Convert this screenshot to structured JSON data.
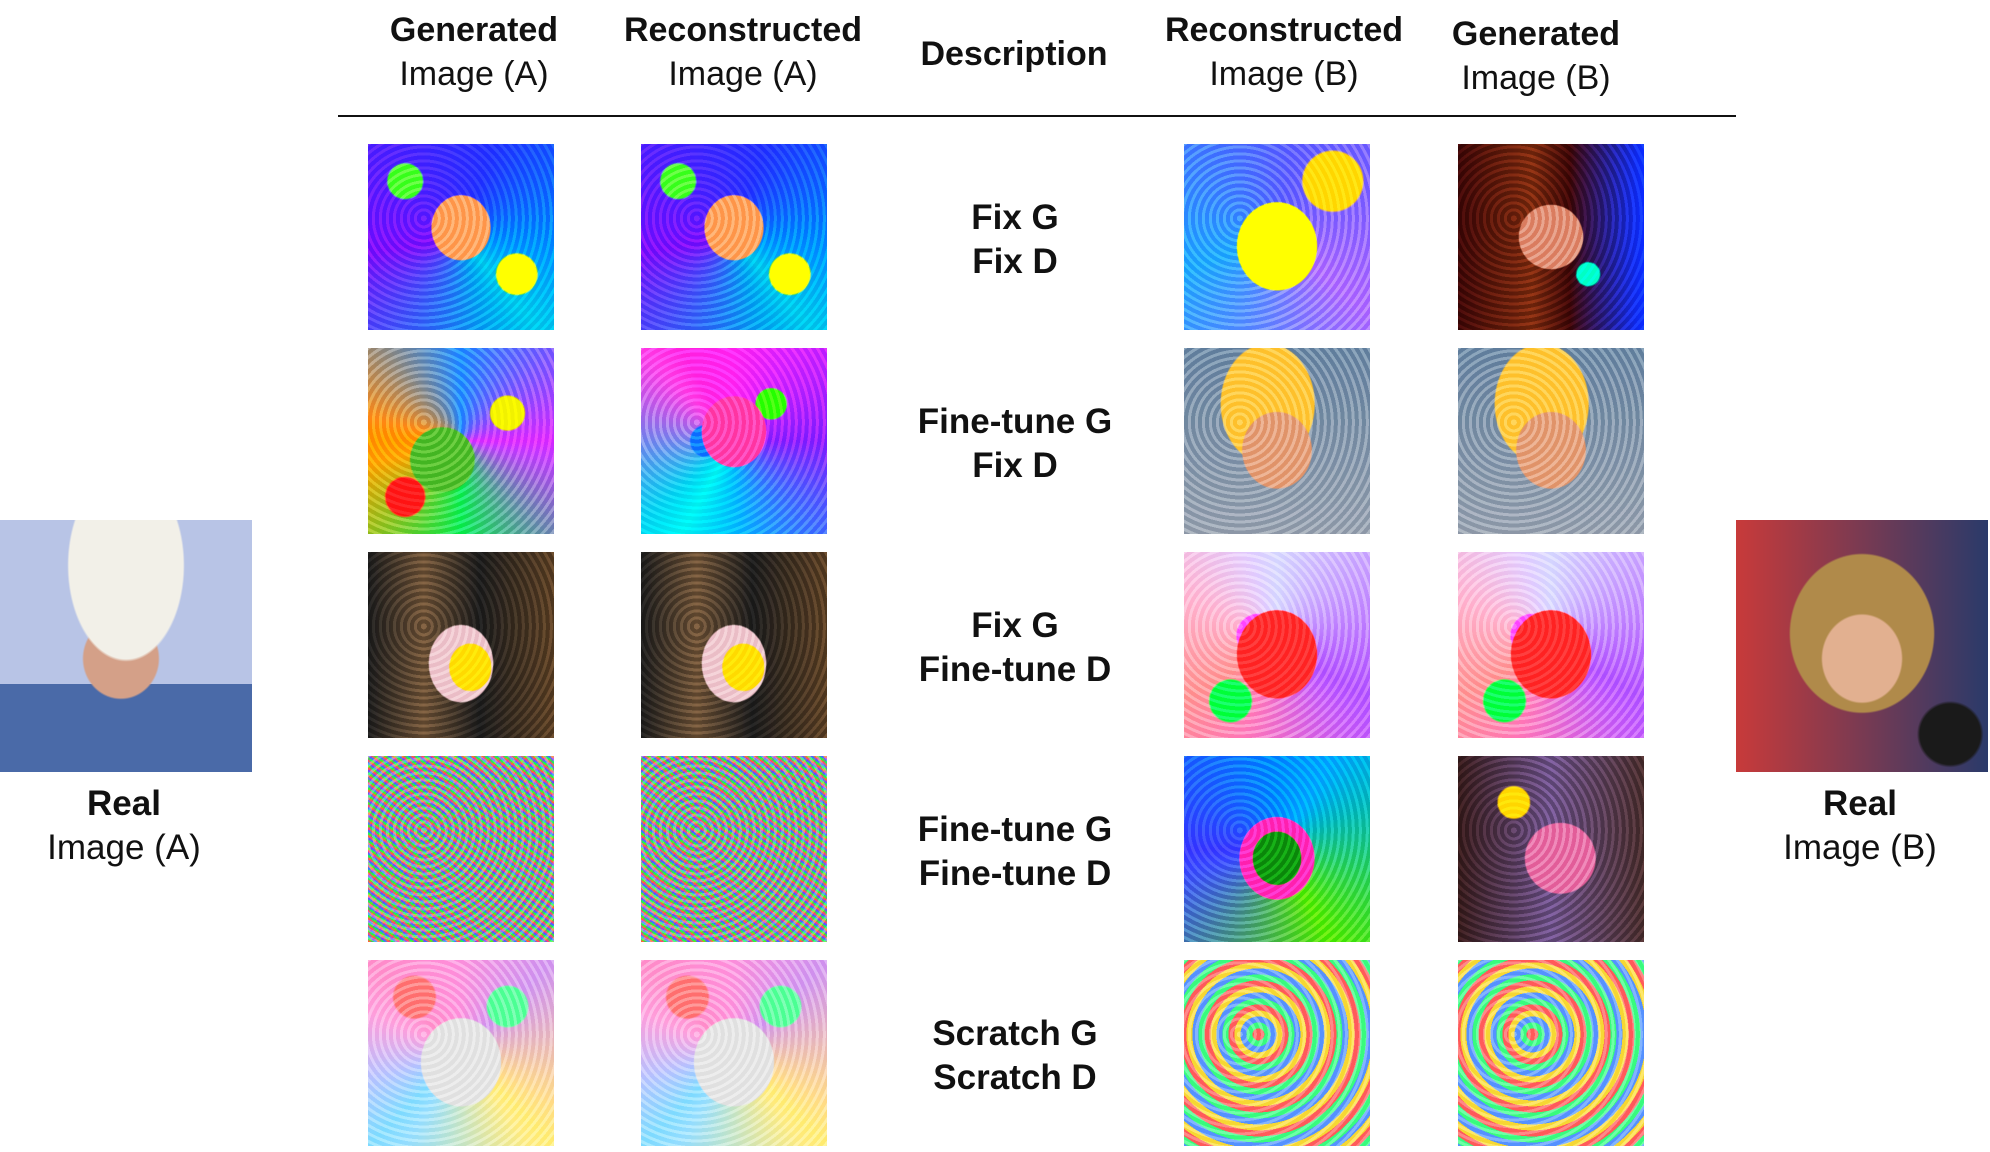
{
  "headers": {
    "gen_a": {
      "bold": "Generated",
      "normal": "Image (A)"
    },
    "rec_a": {
      "bold": "Reconstructed",
      "normal": "Image (A)"
    },
    "desc": "Description",
    "rec_b": {
      "bold": "Reconstructed",
      "normal": "Image (B)"
    },
    "gen_b": {
      "bold": "Generated",
      "normal": "Image (B)"
    }
  },
  "rows": [
    {
      "line1": "Fix G",
      "line2": "Fix D"
    },
    {
      "line1": "Fine-tune G",
      "line2": "Fix D"
    },
    {
      "line1": "Fix G",
      "line2": "Fine-tune D"
    },
    {
      "line1": "Fine-tune G",
      "line2": "Fine-tune D"
    },
    {
      "line1": "Scratch G",
      "line2": "Scratch D"
    }
  ],
  "real_a": {
    "bold": "Real",
    "normal": "Image (A)"
  },
  "real_b": {
    "bold": "Real",
    "normal": "Image (B)"
  }
}
